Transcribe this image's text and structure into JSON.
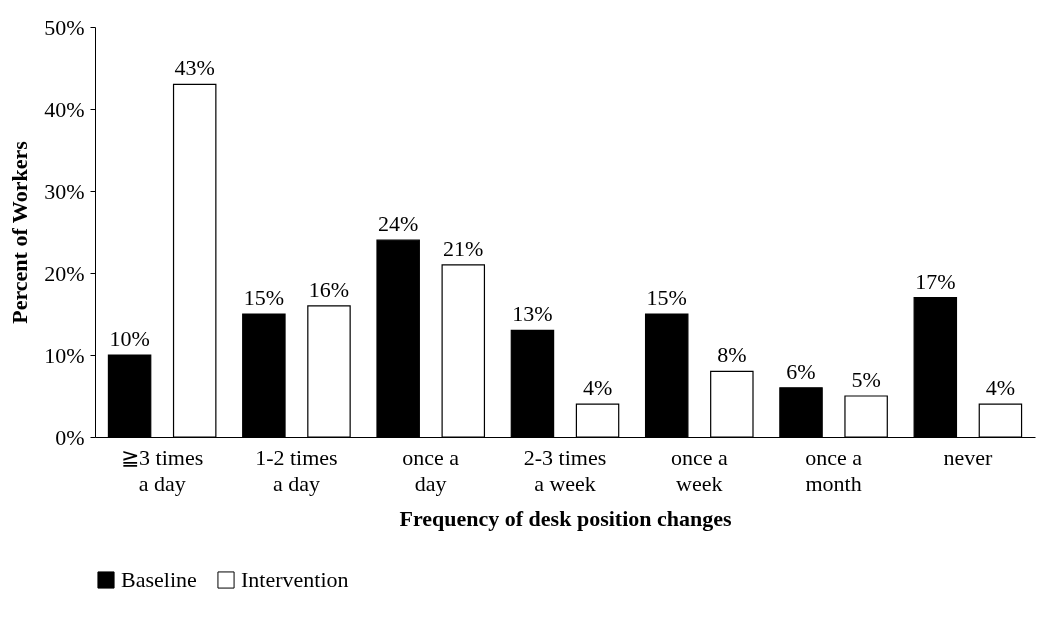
{
  "chart_data": {
    "type": "bar",
    "xlabel": "Frequency of desk position changes",
    "ylabel": "Percent of Workers",
    "categories": [
      "≧3 times\na day",
      "1-2 times\na day",
      "once a\nday",
      "2-3 times\na week",
      "once a\nweek",
      "once a\nmonth",
      "never"
    ],
    "series": [
      {
        "name": "Baseline",
        "color": "#000000",
        "values": [
          10,
          15,
          24,
          13,
          15,
          6,
          17
        ],
        "value_labels": [
          "10%",
          "15%",
          "24%",
          "13%",
          "15%",
          "6%",
          "17%"
        ]
      },
      {
        "name": "Intervention",
        "color": "#ffffff",
        "values": [
          43,
          16,
          21,
          4,
          8,
          5,
          4
        ],
        "value_labels": [
          "43%",
          "16%",
          "21%",
          "4%",
          "8%",
          "5%",
          "4%"
        ]
      }
    ],
    "ylim": [
      0,
      50
    ],
    "yticks": [
      {
        "value": 0,
        "label": "0%"
      },
      {
        "value": 10,
        "label": "10%"
      },
      {
        "value": 20,
        "label": "20%"
      },
      {
        "value": 30,
        "label": "30%"
      },
      {
        "value": 40,
        "label": "40%"
      },
      {
        "value": 50,
        "label": "50%"
      }
    ],
    "grid": false,
    "legend": "bottom"
  }
}
